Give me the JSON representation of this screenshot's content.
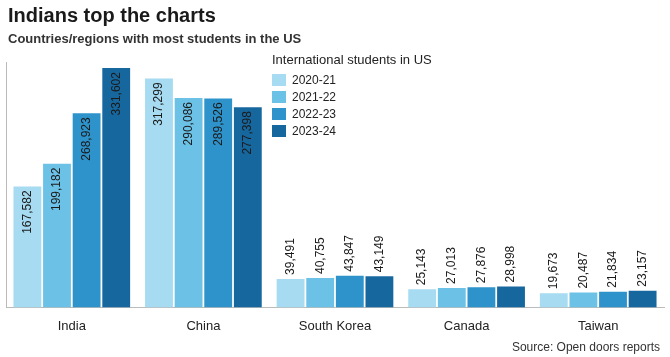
{
  "chart_data": {
    "type": "bar",
    "title": "Indians top the charts",
    "subtitle": "Countries/regions with most students in the US",
    "legend_title": "International students in US",
    "source": "Source: Open doors reports",
    "categories": [
      "India",
      "China",
      "South Korea",
      "Canada",
      "Taiwan"
    ],
    "series": [
      {
        "name": "2020-21",
        "color": "#a6dbf1",
        "values": [
          167582,
          317299,
          39491,
          25143,
          19673
        ],
        "value_labels": [
          "167,582",
          "317,299",
          "39,491",
          "25,143",
          "19,673"
        ]
      },
      {
        "name": "2021-22",
        "color": "#6cc1e6",
        "values": [
          199182,
          290086,
          40755,
          27013,
          20487
        ],
        "value_labels": [
          "199,182",
          "290,086",
          "40,755",
          "27,013",
          "20,487"
        ]
      },
      {
        "name": "2022-23",
        "color": "#2e93cb",
        "values": [
          268923,
          289526,
          43847,
          27876,
          21834
        ],
        "value_labels": [
          "268,923",
          "289,526",
          "43,847",
          "27,876",
          "21,834"
        ]
      },
      {
        "name": "2023-24",
        "color": "#17679f",
        "values": [
          331602,
          277398,
          43149,
          28998,
          23157
        ],
        "value_labels": [
          "331,602",
          "277,398",
          "43,149",
          "28,998",
          "23,157"
        ]
      }
    ],
    "ylim": [
      0,
      340000
    ],
    "grid": false,
    "legend": "top",
    "data_labels": true,
    "tick_labels": "x"
  }
}
